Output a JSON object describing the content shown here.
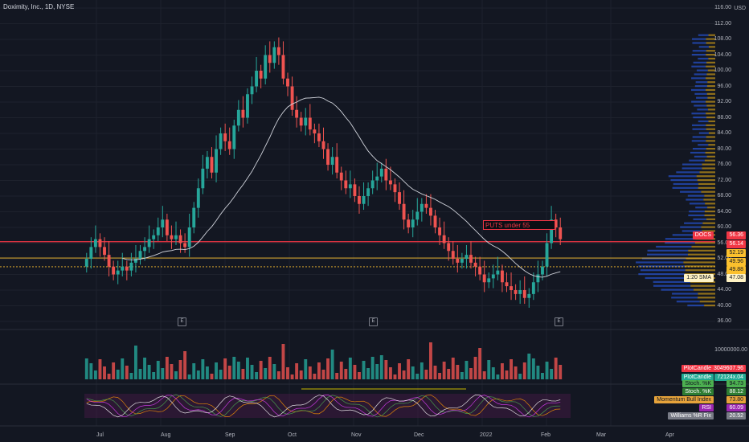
{
  "header": {
    "title": "Doximity, Inc., 1D, NYSE"
  },
  "annotation": {
    "text": "PUTS under 55"
  },
  "price_axis": {
    "currency": "USD",
    "ticks": [
      "116.00",
      "112.00",
      "108.00",
      "104.00",
      "100.00",
      "96.00",
      "92.00",
      "88.00",
      "84.00",
      "80.00",
      "76.00",
      "72.00",
      "68.00",
      "64.00",
      "60.00",
      "56.00",
      "52.00",
      "48.00",
      "44.00",
      "40.00",
      "36.00"
    ]
  },
  "price_tags": [
    {
      "text": "DOCS",
      "bg": "#f23645",
      "fg": "#ffffff"
    },
    {
      "text": "56.36",
      "bg": "#f23645",
      "fg": "#ffffff"
    },
    {
      "text": "56.14",
      "bg": "#f23645",
      "fg": "#ffffff"
    },
    {
      "text": "52.19",
      "bg": "#fbc02d",
      "fg": "#131722"
    },
    {
      "text": "49.96",
      "bg": "#fbc02d",
      "fg": "#131722"
    },
    {
      "text": "49.88",
      "bg": "#fbc02d",
      "fg": "#131722"
    },
    {
      "text": "1:20 SMA",
      "bg": "#fff3c4",
      "fg": "#131722"
    },
    {
      "text": "47.08",
      "bg": "#fff3c4",
      "fg": "#131722"
    }
  ],
  "volume_axis": {
    "tick": "10000000.00"
  },
  "volume_tags": [
    {
      "text": "PlotCandle",
      "bg": "#f23645",
      "fg": "#ffffff"
    },
    {
      "text": "3049607.96",
      "bg": "#f23645",
      "fg": "#ffffff"
    },
    {
      "text": "PlotCandle",
      "bg": "#22ab94",
      "fg": "#ffffff"
    },
    {
      "text": "72124x.04",
      "bg": "#22ab94",
      "fg": "#ffffff"
    }
  ],
  "indicator_tags": [
    {
      "text": "Stoch. %K",
      "bg": "#4caf50",
      "fg": "#131722"
    },
    {
      "text": "94.73",
      "bg": "#4caf50",
      "fg": "#131722"
    },
    {
      "text": "Stoch. %K",
      "bg": "#2e7d32",
      "fg": "#ffffff"
    },
    {
      "text": "88.12",
      "bg": "#2e7d32",
      "fg": "#ffffff"
    },
    {
      "text": "Momentum Bull Index",
      "bg": "#e6a33b",
      "fg": "#131722"
    },
    {
      "text": "73.80",
      "bg": "#e6a33b",
      "fg": "#131722"
    },
    {
      "text": "RSI",
      "bg": "#9c27b0",
      "fg": "#ffffff"
    },
    {
      "text": "60.09",
      "bg": "#9c27b0",
      "fg": "#ffffff"
    },
    {
      "text": "Williams %R Fix",
      "bg": "#787b86",
      "fg": "#ffffff"
    },
    {
      "text": "20.52",
      "bg": "#787b86",
      "fg": "#ffffff"
    }
  ],
  "time_axis": {
    "labels": [
      "Jul",
      "Aug",
      "Sep",
      "Oct",
      "Nov",
      "Dec",
      "2022",
      "Feb",
      "Mar",
      "Apr"
    ]
  },
  "earnings_markers": [
    "E",
    "E",
    "E"
  ],
  "colors": {
    "up": "#26a69a",
    "down": "#ef5350",
    "sma": "#d1d4dc",
    "level_red": "#f23645",
    "level_yellow": "#fbc02d"
  },
  "chart_data": {
    "type": "candlestick",
    "symbol": "DOCS",
    "ylim": [
      36,
      116
    ],
    "closes": [
      52,
      55,
      57,
      55,
      53,
      50,
      48,
      49,
      50,
      49,
      51,
      52,
      54,
      55,
      57,
      58,
      60,
      62,
      58,
      57,
      58,
      56,
      55,
      60,
      65,
      70,
      75,
      78,
      74,
      80,
      84,
      82,
      80,
      86,
      90,
      88,
      94,
      96,
      100,
      98,
      104,
      102,
      106,
      104,
      98,
      96,
      90,
      88,
      86,
      88,
      85,
      84,
      82,
      80,
      76,
      78,
      74,
      72,
      70,
      71,
      68,
      66,
      68,
      70,
      72,
      73,
      75,
      72,
      71,
      69,
      66,
      62,
      60,
      62,
      64,
      66,
      65,
      63,
      60,
      58,
      56,
      54,
      52,
      51,
      52,
      53,
      51,
      50,
      48,
      46,
      47,
      48,
      49,
      46,
      45,
      44,
      43,
      44,
      42,
      43,
      46,
      48,
      50,
      56,
      62,
      60,
      57
    ],
    "sma_label": "1:20 SMA",
    "sma_last": 47.08,
    "levels": [
      56.36,
      52.19,
      49.96
    ]
  }
}
